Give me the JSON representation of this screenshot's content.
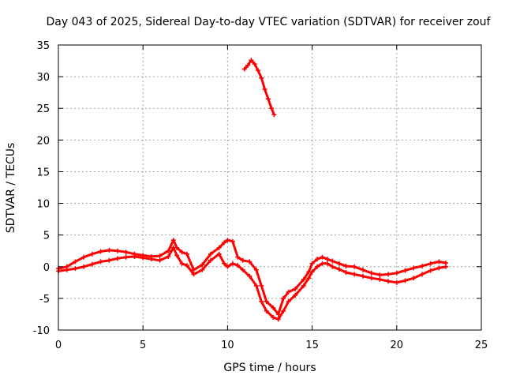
{
  "chart_data": {
    "type": "line",
    "title": "Day 043 of 2025, Sidereal Day-to-day VTEC variation (SDTVAR) for receiver zouf",
    "xlabel": "GPS time / hours",
    "ylabel": "SDTVAR / TECUs",
    "xlim": [
      0,
      25
    ],
    "ylim": [
      -10,
      35
    ],
    "xticks": [
      0,
      5,
      10,
      15,
      20,
      25
    ],
    "yticks": [
      -10,
      -5,
      0,
      5,
      10,
      15,
      20,
      25,
      30,
      35
    ],
    "grid": true,
    "color": "#ff0000",
    "series": [
      {
        "name": "main-trace-upper",
        "x": [
          0.0,
          0.5,
          1.0,
          1.5,
          2.0,
          2.5,
          3.0,
          3.5,
          4.0,
          4.5,
          5.0,
          5.5,
          6.0,
          6.5,
          6.8,
          7.0,
          7.3,
          7.6,
          8.0,
          8.5,
          9.0,
          9.5,
          9.8,
          10.0,
          10.3,
          10.6,
          10.9,
          11.3,
          11.7,
          12.0,
          12.3,
          12.7,
          13.0,
          13.3,
          13.6,
          14.0,
          14.5,
          14.8,
          15.0,
          15.3,
          15.6,
          15.9,
          16.2,
          16.6,
          17.0,
          17.5,
          18.0,
          18.5,
          19.0,
          19.5,
          20.0,
          20.5,
          21.0,
          21.5,
          22.0,
          22.5,
          22.9
        ],
        "y": [
          -0.3,
          0.0,
          0.8,
          1.5,
          2.0,
          2.4,
          2.6,
          2.5,
          2.3,
          2.0,
          1.8,
          1.6,
          1.7,
          2.5,
          4.2,
          3.0,
          2.3,
          2.0,
          -0.5,
          0.3,
          2.0,
          3.0,
          3.8,
          4.2,
          4.0,
          1.5,
          1.0,
          0.8,
          -0.5,
          -3.0,
          -5.5,
          -6.5,
          -7.5,
          -5.0,
          -4.0,
          -3.5,
          -2.0,
          -0.8,
          0.5,
          1.2,
          1.5,
          1.2,
          0.9,
          0.5,
          0.1,
          0.0,
          -0.5,
          -1.0,
          -1.3,
          -1.2,
          -1.0,
          -0.6,
          -0.2,
          0.1,
          0.5,
          0.8,
          0.6
        ]
      },
      {
        "name": "main-trace-lower",
        "x": [
          0.0,
          0.5,
          1.0,
          1.5,
          2.0,
          2.5,
          3.0,
          3.5,
          4.0,
          4.5,
          5.0,
          5.5,
          6.0,
          6.5,
          6.8,
          7.0,
          7.3,
          7.6,
          8.0,
          8.5,
          9.0,
          9.5,
          9.8,
          10.0,
          10.3,
          10.6,
          10.9,
          11.3,
          11.7,
          12.0,
          12.3,
          12.7,
          13.0,
          13.3,
          13.6,
          14.0,
          14.5,
          14.8,
          15.0,
          15.3,
          15.6,
          15.9,
          16.2,
          16.6,
          17.0,
          17.5,
          18.0,
          18.5,
          19.0,
          19.5,
          20.0,
          20.5,
          21.0,
          21.5,
          22.0,
          22.5,
          22.9
        ],
        "y": [
          -0.7,
          -0.5,
          -0.3,
          0.0,
          0.4,
          0.8,
          1.0,
          1.3,
          1.5,
          1.6,
          1.4,
          1.2,
          1.0,
          1.6,
          3.0,
          1.8,
          0.5,
          0.2,
          -1.2,
          -0.5,
          1.0,
          2.0,
          0.5,
          0.0,
          0.5,
          0.2,
          -0.5,
          -1.5,
          -3.0,
          -5.5,
          -7.0,
          -8.0,
          -8.3,
          -7.0,
          -5.5,
          -4.5,
          -3.0,
          -1.8,
          -0.8,
          0.0,
          0.5,
          0.5,
          0.0,
          -0.4,
          -0.9,
          -1.2,
          -1.5,
          -1.8,
          -2.0,
          -2.3,
          -2.5,
          -2.2,
          -1.8,
          -1.2,
          -0.6,
          -0.2,
          0.0
        ]
      },
      {
        "name": "upper-arc",
        "x": [
          11.0,
          11.2,
          11.4,
          11.6,
          11.8,
          12.0,
          12.2,
          12.4,
          12.6,
          12.75
        ],
        "y": [
          31.2,
          31.8,
          32.6,
          32.0,
          31.0,
          29.8,
          28.0,
          26.5,
          25.0,
          24.0
        ]
      }
    ]
  }
}
